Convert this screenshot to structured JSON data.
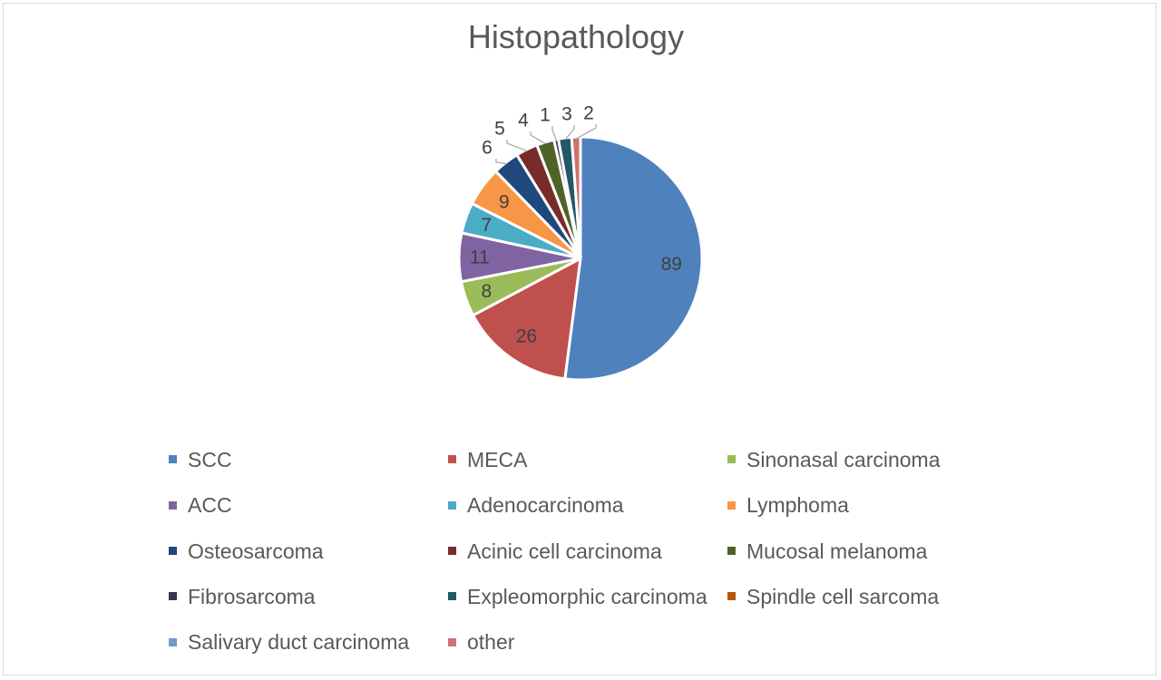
{
  "chart_data": {
    "type": "pie",
    "title": "Histopathology",
    "legend_position": "bottom",
    "slices": [
      {
        "label": "SCC",
        "value": 89,
        "color": "#4f81bd"
      },
      {
        "label": "MECA",
        "value": 26,
        "color": "#c0504d"
      },
      {
        "label": "Sinonasal carcinoma",
        "value": 8,
        "color": "#9bbb59"
      },
      {
        "label": "ACC",
        "value": 11,
        "color": "#8064a2"
      },
      {
        "label": "Adenocarcinoma",
        "value": 7,
        "color": "#4bacc6"
      },
      {
        "label": "Lymphoma",
        "value": 9,
        "color": "#f79646"
      },
      {
        "label": "Osteosarcoma",
        "value": 6,
        "color": "#1f497d"
      },
      {
        "label": "Acinic cell carcinoma",
        "value": 5,
        "color": "#772c2a"
      },
      {
        "label": "Mucosal melanoma",
        "value": 4,
        "color": "#4f6228"
      },
      {
        "label": "Fibrosarcoma",
        "value": 1,
        "color": "#3f3151"
      },
      {
        "label": "Expleomorphic carcinoma",
        "value": 3,
        "color": "#215968"
      },
      {
        "label": "Spindle cell sarcoma",
        "value": 0,
        "color": "#b65708"
      },
      {
        "label": "Salivary duct carcinoma",
        "value": 0,
        "color": "#729aca"
      },
      {
        "label": "other",
        "value": 2,
        "color": "#cd7371"
      }
    ]
  }
}
